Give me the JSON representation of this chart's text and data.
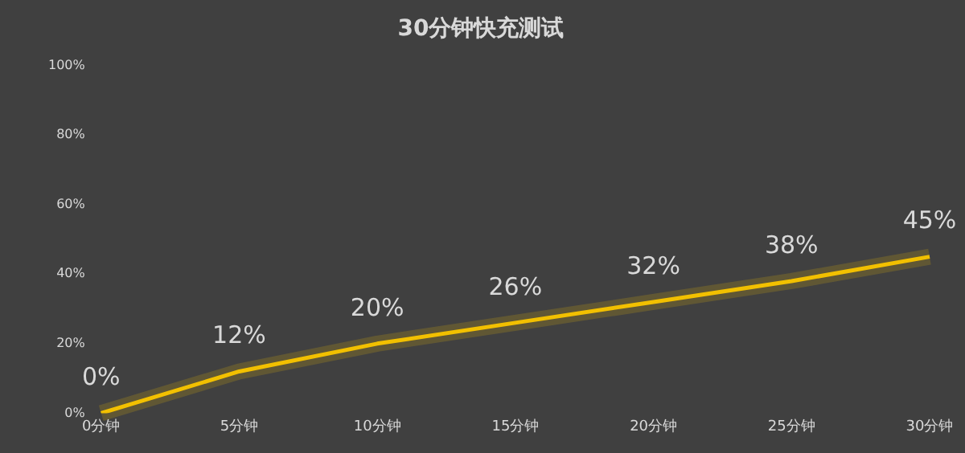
{
  "chart_data": {
    "type": "line",
    "title": "30分钟快充测试",
    "categories": [
      "0分钟",
      "5分钟",
      "10分钟",
      "15分钟",
      "20分钟",
      "25分钟",
      "30分钟"
    ],
    "series": [
      {
        "color": "#f2c000",
        "values": [
          0,
          12,
          20,
          26,
          32,
          38,
          45
        ],
        "value_labels": [
          "0%",
          "12%",
          "20%",
          "26%",
          "32%",
          "38%",
          "45%"
        ]
      }
    ],
    "ylim": [
      0,
      100
    ],
    "yticks": [
      {
        "value": 0,
        "label": "0%"
      },
      {
        "value": 20,
        "label": "20%"
      },
      {
        "value": 40,
        "label": "40%"
      },
      {
        "value": 60,
        "label": "60%"
      },
      {
        "value": 80,
        "label": "80%"
      },
      {
        "value": 100,
        "label": "100%"
      }
    ],
    "grid": false,
    "legend": false,
    "marker": "none",
    "line_style": "solid"
  }
}
